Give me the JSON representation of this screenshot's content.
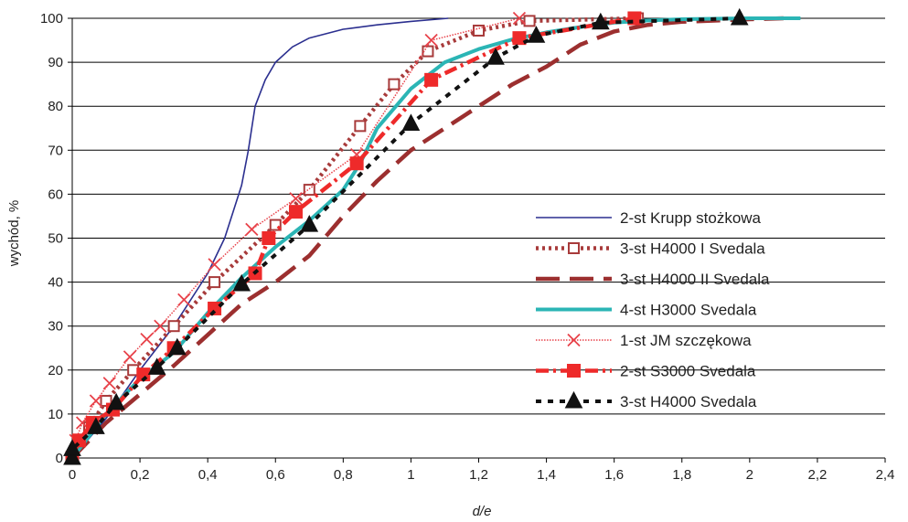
{
  "chart_data": {
    "type": "line",
    "xlabel": "d/e",
    "ylabel": "wychód, %",
    "xlim": [
      0,
      2.4
    ],
    "ylim": [
      0,
      100
    ],
    "xticks": [
      0,
      0.2,
      0.4,
      0.6,
      0.8,
      1,
      1.2,
      1.4,
      1.6,
      1.8,
      2,
      2.2,
      2.4
    ],
    "xtick_labels": [
      "0",
      "0,2",
      "0,4",
      "0,6",
      "0,8",
      "1",
      "1,2",
      "1,4",
      "1,6",
      "1,8",
      "2",
      "2,2",
      "2,4"
    ],
    "yticks": [
      0,
      10,
      20,
      30,
      40,
      50,
      60,
      70,
      80,
      90,
      100
    ],
    "ytick_labels": [
      "0",
      "10",
      "20",
      "30",
      "40",
      "50",
      "60",
      "70",
      "80",
      "90",
      "100"
    ],
    "grid": "horizontal",
    "legend_position": "right",
    "series": [
      {
        "name": "2-st Krupp stożkowa",
        "color": "#2b2f8f",
        "dash": "solid",
        "marker": "none",
        "points": [
          [
            0,
            0
          ],
          [
            0.1,
            9
          ],
          [
            0.2,
            20
          ],
          [
            0.3,
            30
          ],
          [
            0.4,
            42
          ],
          [
            0.45,
            50
          ],
          [
            0.5,
            62
          ],
          [
            0.52,
            70
          ],
          [
            0.54,
            80
          ],
          [
            0.57,
            86
          ],
          [
            0.6,
            90
          ],
          [
            0.65,
            93.5
          ],
          [
            0.7,
            95.5
          ],
          [
            0.8,
            97.5
          ],
          [
            0.9,
            98.5
          ],
          [
            1.0,
            99.3
          ],
          [
            1.11,
            100
          ]
        ]
      },
      {
        "name": "3-st H4000 I Svedala",
        "color": "#a83b3b",
        "dash": "dot",
        "marker": "open-square",
        "points": [
          [
            0,
            0
          ],
          [
            0.05,
            7
          ],
          [
            0.1,
            13
          ],
          [
            0.18,
            20
          ],
          [
            0.3,
            30
          ],
          [
            0.42,
            40
          ],
          [
            0.6,
            53
          ],
          [
            0.7,
            61
          ],
          [
            0.85,
            75.5
          ],
          [
            0.95,
            85
          ],
          [
            1.05,
            92.5
          ],
          [
            1.2,
            97.2
          ],
          [
            1.35,
            99.4
          ],
          [
            1.67,
            100
          ]
        ]
      },
      {
        "name": "3-st H4000 II Svedala",
        "color": "#9c2f2f",
        "dash": "longdash",
        "marker": "none",
        "points": [
          [
            0,
            0
          ],
          [
            0.1,
            8
          ],
          [
            0.2,
            14.5
          ],
          [
            0.3,
            21
          ],
          [
            0.4,
            28
          ],
          [
            0.5,
            35
          ],
          [
            0.6,
            40
          ],
          [
            0.7,
            46
          ],
          [
            0.8,
            55
          ],
          [
            0.9,
            63
          ],
          [
            1.0,
            70
          ],
          [
            1.1,
            75
          ],
          [
            1.2,
            80
          ],
          [
            1.3,
            85
          ],
          [
            1.4,
            89
          ],
          [
            1.5,
            94
          ],
          [
            1.6,
            97
          ],
          [
            1.7,
            98.5
          ],
          [
            1.8,
            99.2
          ],
          [
            2.0,
            99.8
          ],
          [
            2.1,
            100
          ]
        ]
      },
      {
        "name": "4-st H3000 Svedala",
        "color": "#2bb5b5",
        "dash": "solid",
        "marker": "none",
        "points": [
          [
            0,
            0
          ],
          [
            0.04,
            4
          ],
          [
            0.1,
            10
          ],
          [
            0.2,
            18
          ],
          [
            0.3,
            24
          ],
          [
            0.4,
            33
          ],
          [
            0.5,
            41
          ],
          [
            0.6,
            48
          ],
          [
            0.7,
            54
          ],
          [
            0.8,
            61
          ],
          [
            0.85,
            67
          ],
          [
            0.9,
            75
          ],
          [
            1.0,
            84
          ],
          [
            1.05,
            87
          ],
          [
            1.1,
            90
          ],
          [
            1.2,
            93
          ],
          [
            1.3,
            95.2
          ],
          [
            1.4,
            96.8
          ],
          [
            1.5,
            98
          ],
          [
            1.6,
            99
          ],
          [
            1.7,
            99.5
          ],
          [
            1.8,
            99.8
          ],
          [
            2.0,
            100
          ],
          [
            2.15,
            100
          ]
        ]
      },
      {
        "name": "1-st JM szczękowa",
        "color": "#e8424a",
        "dash": "dotted-thin",
        "marker": "x",
        "points": [
          [
            0,
            0
          ],
          [
            0.01,
            4
          ],
          [
            0.03,
            8
          ],
          [
            0.07,
            13
          ],
          [
            0.11,
            17
          ],
          [
            0.17,
            23
          ],
          [
            0.22,
            27
          ],
          [
            0.26,
            30
          ],
          [
            0.33,
            36
          ],
          [
            0.42,
            44
          ],
          [
            0.53,
            52
          ],
          [
            0.66,
            59
          ],
          [
            0.84,
            69
          ],
          [
            1.06,
            95
          ],
          [
            1.32,
            100
          ]
        ]
      },
      {
        "name": "2-st S3000 Svedala",
        "color": "#ee2a2a",
        "dash": "dashdot",
        "marker": "square",
        "points": [
          [
            0,
            0
          ],
          [
            0.02,
            4
          ],
          [
            0.06,
            8
          ],
          [
            0.12,
            11
          ],
          [
            0.21,
            19
          ],
          [
            0.3,
            25
          ],
          [
            0.42,
            34
          ],
          [
            0.54,
            42
          ],
          [
            0.58,
            50
          ],
          [
            0.66,
            56
          ],
          [
            0.84,
            67
          ],
          [
            1.06,
            86
          ],
          [
            1.32,
            95.5
          ],
          [
            1.66,
            100
          ]
        ]
      },
      {
        "name": " 3-st H4000 Svedala",
        "color": "#111111",
        "dash": "dash",
        "marker": "triangle",
        "points": [
          [
            0,
            0
          ],
          [
            0,
            2
          ],
          [
            0.07,
            7
          ],
          [
            0.13,
            12.5
          ],
          [
            0.25,
            20.5
          ],
          [
            0.31,
            25
          ],
          [
            0.5,
            39.5
          ],
          [
            0.7,
            53
          ],
          [
            1.0,
            76
          ],
          [
            1.25,
            91
          ],
          [
            1.37,
            96
          ],
          [
            1.56,
            99
          ],
          [
            1.97,
            100
          ]
        ]
      }
    ]
  }
}
